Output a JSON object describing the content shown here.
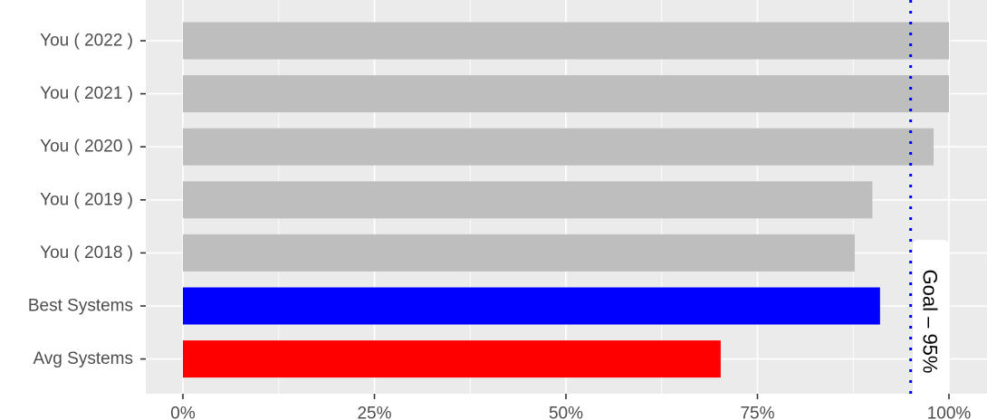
{
  "chart_data": {
    "type": "bar",
    "orientation": "horizontal",
    "title": "",
    "xlabel": "",
    "ylabel": "",
    "categories": [
      "You ( 2022 )",
      "You ( 2021 )",
      "You ( 2020 )",
      "You ( 2019 )",
      "You ( 2018 )",
      "Best Systems",
      "Avg Systems"
    ],
    "values": [
      100,
      100,
      98,
      90,
      87.7,
      91,
      70.2
    ],
    "bar_colors": [
      "#bebebe",
      "#bebebe",
      "#bebebe",
      "#bebebe",
      "#bebebe",
      "#0000ff",
      "#ff0000"
    ],
    "xlim": [
      0,
      100
    ],
    "x_ticks": [
      0,
      25,
      50,
      75,
      100
    ],
    "x_tick_labels": [
      "0%",
      "25%",
      "50%",
      "75%",
      "100%"
    ],
    "grid": true,
    "panel_background": "#ebebeb",
    "reference_line": {
      "value": 95,
      "style": "dotted",
      "color": "#0000ff",
      "label": "Goal – 95%"
    }
  }
}
